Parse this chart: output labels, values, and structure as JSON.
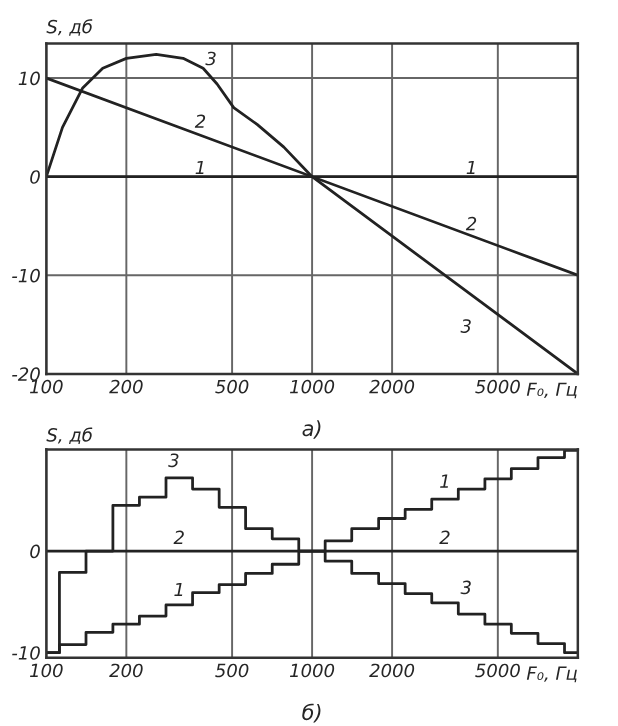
{
  "chart_data": [
    {
      "type": "line",
      "xlabel": "F₀, Гц",
      "ylabel": "S, дб",
      "log": "x",
      "grid": true,
      "xlim": [
        100,
        10000
      ],
      "xticks": [
        100,
        200,
        500,
        1000,
        2000,
        5000
      ],
      "ylim": [
        -20,
        13.5
      ],
      "yticks": [
        10,
        0,
        -10,
        -20
      ],
      "series": [
        {
          "name": "1",
          "color": "#222222",
          "x": [
            100,
            10000
          ],
          "values": [
            0,
            0
          ]
        },
        {
          "name": "2",
          "color": "#222222",
          "x": [
            100,
            10000
          ],
          "values": [
            10,
            -10
          ]
        },
        {
          "name": "3",
          "color": "#222222",
          "x": [
            100,
            115,
            137,
            163,
            200,
            259,
            327,
            389,
            439,
            507,
            621,
            783,
            1000,
            10000
          ],
          "values": [
            0,
            5,
            9,
            11,
            12,
            12.4,
            12,
            11,
            9.4,
            7,
            5.3,
            3,
            0,
            -20
          ]
        }
      ],
      "annotations": [
        "а)"
      ]
    },
    {
      "type": "step",
      "xlabel": "F₀, Гц",
      "ylabel": "S, дб",
      "log": "x",
      "grid": "x",
      "xlim": [
        100,
        10000
      ],
      "xticks": [
        100,
        200,
        500,
        1000,
        2000,
        5000
      ],
      "ylim": [
        -10.5,
        10
      ],
      "yticks": [
        0,
        -10
      ],
      "series": [
        {
          "name": "1",
          "color": "#222222",
          "x": [
            100,
            112,
            141,
            178,
            224,
            282,
            355,
            447,
            562,
            708,
            891,
            1120,
            1410,
            1780,
            2240,
            2820,
            3550,
            4470,
            5620,
            7080,
            8910,
            10000
          ],
          "values": [
            -10,
            -9.2,
            -8,
            -7.2,
            -6.4,
            -5.3,
            -4.1,
            -3.3,
            -2.2,
            -1.3,
            0,
            1,
            2.2,
            3.2,
            4.1,
            5.1,
            6.1,
            7.1,
            8.1,
            9.2,
            9.9,
            9.9
          ]
        },
        {
          "name": "2",
          "color": "#222222",
          "x": [
            100,
            10000
          ],
          "values": [
            0,
            0
          ]
        },
        {
          "name": "3",
          "color": "#222222",
          "x": [
            100,
            112,
            141,
            178,
            224,
            282,
            355,
            447,
            562,
            708,
            891,
            1120,
            1410,
            1780,
            2240,
            2820,
            3550,
            4470,
            5620,
            7080,
            8910,
            10000
          ],
          "values": [
            -10,
            -2.1,
            0,
            4.5,
            5.3,
            7.2,
            6.1,
            4.3,
            2.2,
            1.2,
            0,
            -1,
            -2.2,
            -3.2,
            -4.2,
            -5.1,
            -6.2,
            -7.2,
            -8.1,
            -9.1,
            -10,
            -10
          ]
        }
      ],
      "annotations": [
        "б)"
      ]
    }
  ]
}
